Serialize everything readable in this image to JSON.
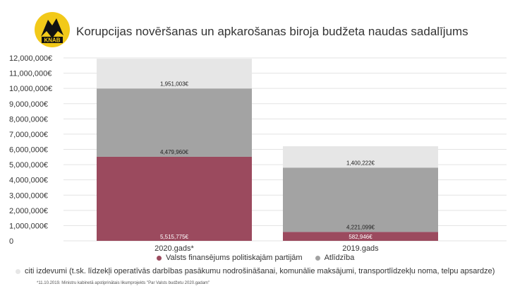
{
  "header": {
    "title": "Korupcijas novēršanas un apkarošanas biroja budžeta naudas sadalījums",
    "logo_text": "KNAB"
  },
  "colors": {
    "party": "#9b4a5e",
    "salary": "#a3a3a3",
    "other": "#e6e6e6"
  },
  "chart_data": {
    "type": "bar",
    "stacked": true,
    "categories": [
      "2020.gads*",
      "2019.gads"
    ],
    "series": [
      {
        "name": "Valsts finansējums politiskajām partijām",
        "values": [
          5515775,
          582946
        ],
        "labels": [
          "5,515,775€",
          "582,946€"
        ]
      },
      {
        "name": "Atlīdzība",
        "values": [
          4479960,
          4221099
        ],
        "labels": [
          "4,479,960€",
          "4,221,099€"
        ]
      },
      {
        "name": "citi izdevumi (t.sk. līdzekļi operatīvās darbības pasākumu nodrošināšanai, komunālie maksājumi, transportlīdzekļu noma, telpu apsardze)",
        "values": [
          1951003,
          1400222
        ],
        "labels": [
          "1,951,003€",
          "1,400,222€"
        ]
      }
    ],
    "ylim": [
      0,
      12000000
    ],
    "yticks": [
      "0",
      "1,000,000€",
      "2,000,000€",
      "3,000,000€",
      "4,000,000€",
      "5,000,000€",
      "6,000,000€",
      "7,000,000€",
      "8,000,000€",
      "9,000,000€",
      "10,000,000€",
      "11,000,000€",
      "12,000,000€"
    ],
    "grid": true,
    "legend_position": "bottom"
  },
  "footnote": "*11.10.2019. Ministru kabinetā apstiprinātais likumprojekts \"Par Valsts budžetu 2020.gadam\""
}
